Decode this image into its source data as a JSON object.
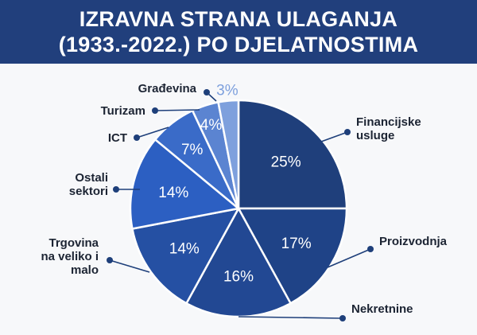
{
  "header": {
    "title_line1": "IZRAVNA STRANA ULAGANJA",
    "title_line2": "(1933.-2022.) PO DJELATNOSTIMA"
  },
  "colors": {
    "header_bg": "#213f7c",
    "accent": "#1e3f7a"
  },
  "chart_data": {
    "type": "pie",
    "title": "IZRAVNA STRANA ULAGANJA (1933.-2022.) PO DJELATNOSTIMA",
    "unit": "%",
    "slices": [
      {
        "label": "Financijske usluge",
        "value": 25,
        "display": "25%",
        "color": "#1f3f7b",
        "text_color": "#ffffff"
      },
      {
        "label": "Proizvodnja",
        "value": 17,
        "display": "17%",
        "color": "#1f4387",
        "text_color": "#ffffff"
      },
      {
        "label": "Nekretnine",
        "value": 16,
        "display": "16%",
        "color": "#224893",
        "text_color": "#ffffff"
      },
      {
        "label": "Trgovina na veliko i malo",
        "value": 14,
        "display": "14%",
        "color": "#2550a3",
        "text_color": "#ffffff"
      },
      {
        "label": "Ostali sektori",
        "value": 14,
        "display": "14%",
        "color": "#2c5fc2",
        "text_color": "#ffffff"
      },
      {
        "label": "ICT",
        "value": 7,
        "display": "7%",
        "color": "#3a6bc8",
        "text_color": "#ffffff"
      },
      {
        "label": "Turizam",
        "value": 4,
        "display": "4%",
        "color": "#5b84d1",
        "text_color": "#ffffff"
      },
      {
        "label": "Građevina",
        "value": 3,
        "display": "3%",
        "color": "#7ea0dd",
        "text_color": "#7ea0dd"
      }
    ]
  }
}
